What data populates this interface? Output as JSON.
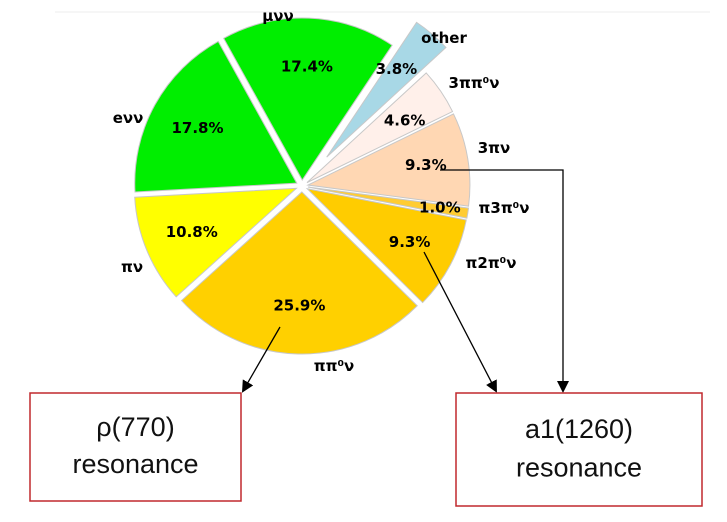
{
  "chart_data": {
    "type": "pie",
    "unit": "%",
    "slices": [
      {
        "label": "μνν",
        "value": 17.4,
        "pct_text": "17.4%",
        "color": "#00ee00",
        "exploded": false
      },
      {
        "label": "other",
        "value": 3.8,
        "pct_text": "3.8%",
        "color": "#a8d8e6",
        "exploded": true
      },
      {
        "label": "3ππ⁰ν",
        "value": 4.6,
        "pct_text": "4.6%",
        "color": "#fff0ea",
        "exploded": false
      },
      {
        "label": "3πν",
        "value": 9.3,
        "pct_text": "9.3%",
        "color": "#ffd7b3",
        "exploded": false
      },
      {
        "label": "π3π⁰ν",
        "value": 1.0,
        "pct_text": "1.0%",
        "color": "#ffcc33",
        "exploded": false
      },
      {
        "label": "π2π⁰ν",
        "value": 9.3,
        "pct_text": "9.3%",
        "color": "#ffcc00",
        "exploded": false
      },
      {
        "label": "ππ⁰ν",
        "value": 25.9,
        "pct_text": "25.9%",
        "color": "#ffd000",
        "exploded": false
      },
      {
        "label": "πν",
        "value": 10.8,
        "pct_text": "10.8%",
        "color": "#ffff00",
        "exploded": false
      },
      {
        "label": "eνν",
        "value": 17.8,
        "pct_text": "17.8%",
        "color": "#00ee00",
        "exploded": false
      }
    ],
    "annotations": [
      {
        "line1": "ρ(770)",
        "line2": "resonance",
        "points_to": [
          "ππ⁰ν"
        ]
      },
      {
        "line1": "a1(1260)",
        "line2": "resonance",
        "points_to": [
          "π2π⁰ν",
          "3πν"
        ]
      }
    ]
  }
}
